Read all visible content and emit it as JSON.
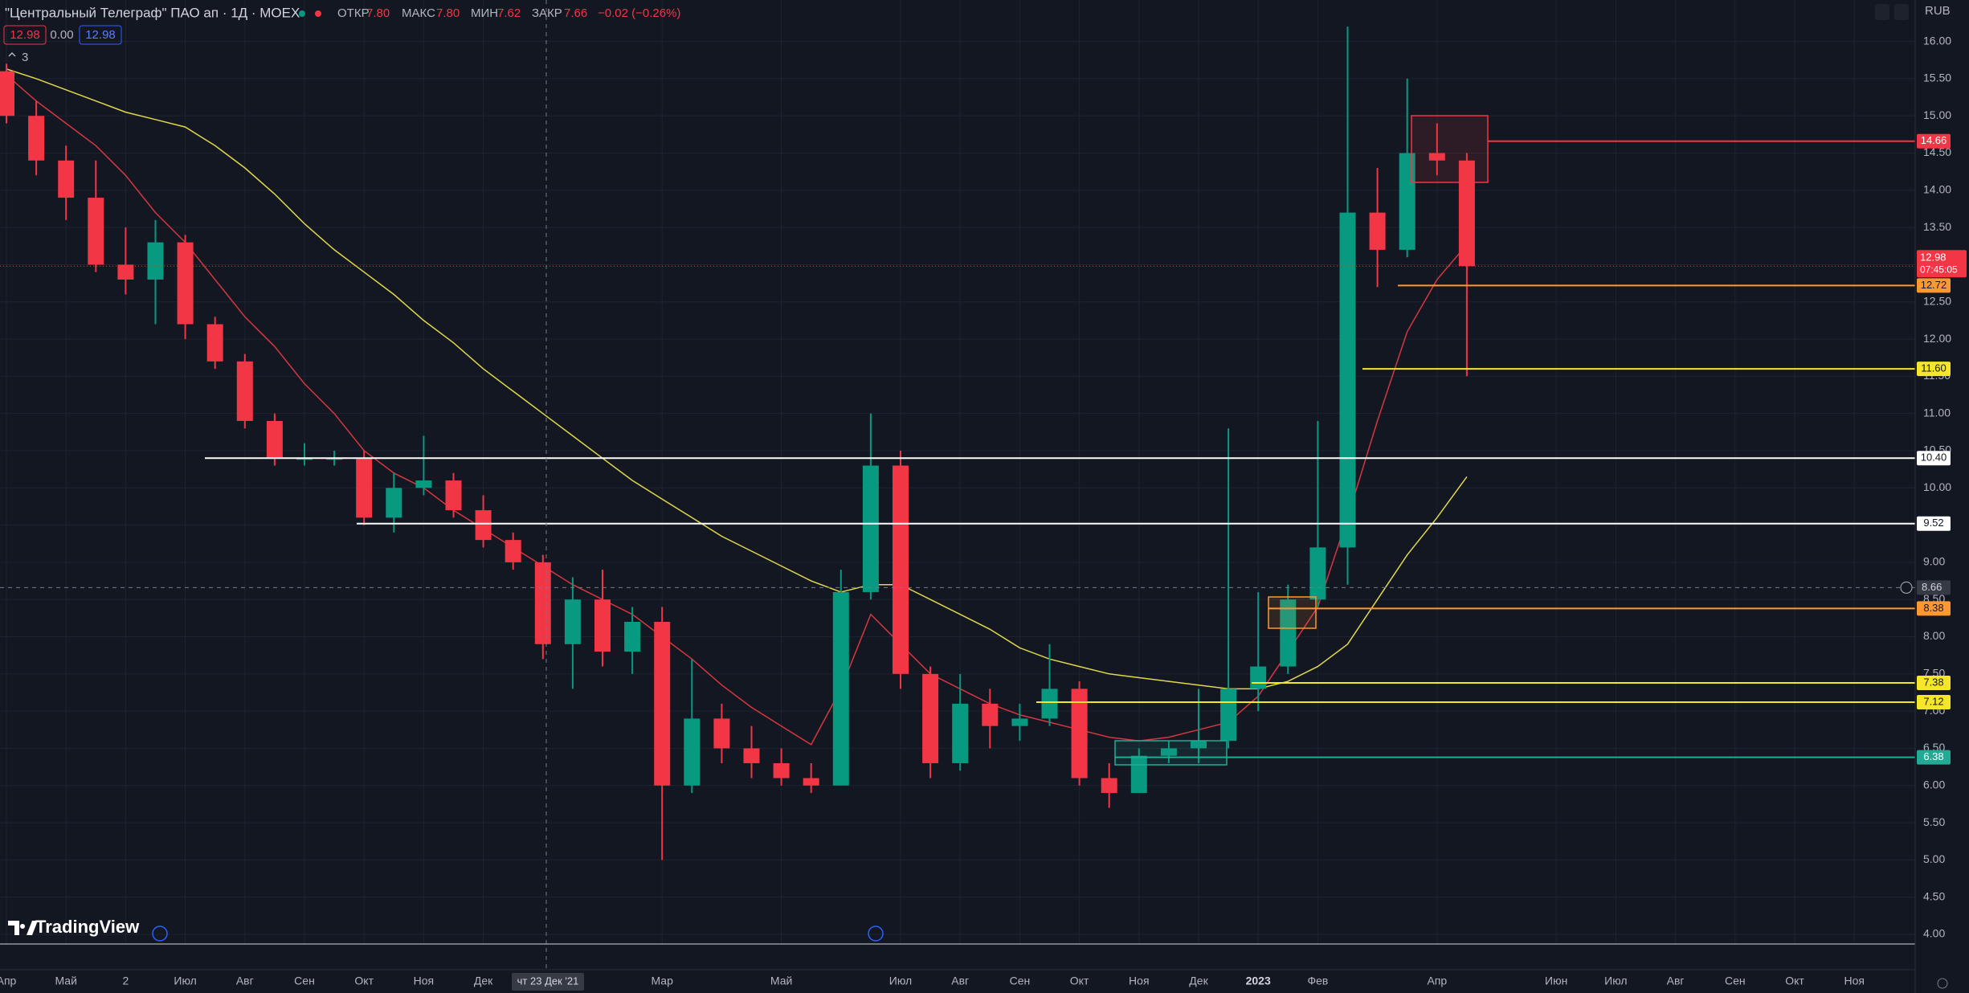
{
  "header": {
    "symbol": "\"Центральный Телеграф\" ПАО ап · 1Д · MOEX",
    "open_label": "ОТКР",
    "open": "7.80",
    "high_label": "МАКС",
    "high": "7.80",
    "low_label": "МИН",
    "low": "7.62",
    "close_label": "ЗАКР",
    "close": "7.66",
    "change": "−0.02 (−0.26%)",
    "sell": "12.98",
    "spread": "0.00",
    "buy": "12.98",
    "indicators": "3",
    "currency": "RUB",
    "brand": "TradingView"
  },
  "chart_data": {
    "type": "candlestick",
    "categories": [
      "Апр",
      null,
      "Май",
      null,
      "2",
      null,
      "Июл",
      null,
      "Авг",
      null,
      "Сен",
      null,
      "Окт",
      null,
      "Ноя",
      null,
      "Дек",
      null,
      null,
      null,
      null,
      null,
      "Мар",
      null,
      null,
      null,
      "Май",
      null,
      null,
      null,
      "Июл",
      null,
      "Авг",
      null,
      "Сен",
      null,
      "Окт",
      null,
      "Ноя",
      null,
      "Дек",
      null,
      "2023",
      null,
      "Фев",
      null,
      null,
      null,
      "Апр",
      null,
      null,
      null,
      "Июн",
      null,
      "Июл",
      null,
      "Авг",
      null,
      "Сен",
      null,
      "Окт",
      null,
      "Ноя",
      null
    ],
    "open": [
      15.6,
      15.0,
      14.4,
      13.9,
      13.0,
      12.8,
      13.3,
      12.2,
      11.7,
      10.9,
      10.4,
      10.4,
      10.4,
      9.6,
      10.0,
      10.1,
      9.7,
      9.3,
      9.0,
      7.9,
      8.5,
      7.8,
      8.2,
      6.0,
      6.9,
      6.5,
      6.3,
      6.1,
      6.0,
      8.6,
      10.3,
      7.5,
      6.3,
      7.1,
      6.8,
      6.9,
      7.3,
      6.1,
      5.9,
      6.4,
      6.5,
      6.6,
      7.3,
      7.6,
      8.5,
      9.2,
      13.7,
      13.2,
      14.5,
      14.4,
      null,
      null,
      null,
      null,
      null,
      null,
      null,
      null,
      null,
      null,
      null,
      null,
      null,
      null
    ],
    "high": [
      15.7,
      15.2,
      14.6,
      14.4,
      13.5,
      13.6,
      13.4,
      12.3,
      11.8,
      11.0,
      10.6,
      10.5,
      10.5,
      10.2,
      10.7,
      10.2,
      9.9,
      9.4,
      9.1,
      8.8,
      8.9,
      8.4,
      8.4,
      7.7,
      7.1,
      6.8,
      6.5,
      6.3,
      8.9,
      11.0,
      10.5,
      7.6,
      7.5,
      7.3,
      7.1,
      7.9,
      7.4,
      6.3,
      6.5,
      6.6,
      7.3,
      10.8,
      8.6,
      8.7,
      10.9,
      16.2,
      14.3,
      15.5,
      14.9,
      14.5,
      null,
      null,
      null,
      null,
      null,
      null,
      null,
      null,
      null,
      null,
      null,
      null,
      null,
      null
    ],
    "low": [
      14.9,
      14.2,
      13.6,
      12.9,
      12.6,
      12.2,
      12.0,
      11.6,
      10.8,
      10.3,
      10.3,
      10.3,
      9.5,
      9.4,
      9.9,
      9.6,
      9.2,
      8.9,
      7.7,
      7.3,
      7.6,
      7.5,
      5.0,
      5.9,
      6.3,
      6.1,
      6.0,
      5.9,
      6.0,
      8.5,
      7.3,
      6.1,
      6.2,
      6.5,
      6.6,
      6.8,
      6.0,
      5.7,
      5.9,
      6.3,
      6.3,
      6.5,
      7.0,
      7.5,
      8.4,
      8.7,
      12.7,
      13.1,
      14.2,
      11.5,
      null,
      null,
      null,
      null,
      null,
      null,
      null,
      null,
      null,
      null,
      null,
      null,
      null,
      null
    ],
    "close": [
      15.0,
      14.4,
      13.9,
      13.0,
      12.8,
      13.3,
      12.2,
      11.7,
      10.9,
      10.4,
      10.4,
      10.4,
      9.6,
      10.0,
      10.1,
      9.7,
      9.3,
      9.0,
      7.9,
      8.5,
      7.8,
      8.2,
      6.0,
      6.9,
      6.5,
      6.3,
      6.1,
      6.0,
      8.6,
      10.3,
      7.5,
      6.3,
      7.1,
      6.8,
      6.9,
      7.3,
      6.1,
      5.9,
      6.4,
      6.5,
      6.6,
      7.3,
      7.6,
      8.5,
      9.2,
      13.7,
      13.2,
      14.5,
      14.4,
      12.98,
      null,
      null,
      null,
      null,
      null,
      null,
      null,
      null,
      null,
      null,
      null,
      null,
      null,
      null
    ],
    "up_color": "#089981",
    "down_color": "#f23645",
    "overlays": [
      {
        "color": "#e0d84a",
        "values": [
          15.63,
          15.5,
          15.35,
          15.2,
          15.05,
          14.95,
          14.85,
          14.6,
          14.3,
          13.95,
          13.55,
          13.2,
          12.9,
          12.6,
          12.25,
          11.95,
          11.6,
          11.3,
          11.0,
          10.7,
          10.4,
          10.1,
          9.85,
          9.6,
          9.35,
          9.15,
          8.95,
          8.75,
          8.6,
          8.7,
          8.7,
          8.5,
          8.3,
          8.1,
          7.85,
          7.7,
          7.6,
          7.5,
          7.45,
          7.4,
          7.35,
          7.3,
          7.3,
          7.4,
          7.6,
          7.9,
          8.5,
          9.1,
          9.6,
          10.15,
          null,
          null,
          null,
          null,
          null,
          null,
          null,
          null,
          null,
          null,
          null,
          null,
          null,
          null
        ]
      },
      {
        "color": "#d6373f",
        "values": [
          15.55,
          15.2,
          14.9,
          14.6,
          14.2,
          13.7,
          13.3,
          12.8,
          12.3,
          11.9,
          11.4,
          11.0,
          10.5,
          10.2,
          10.0,
          9.7,
          9.45,
          9.2,
          8.95,
          8.7,
          8.5,
          8.3,
          8.0,
          7.7,
          7.35,
          7.05,
          6.8,
          6.55,
          7.3,
          8.3,
          7.9,
          7.5,
          7.3,
          7.1,
          6.95,
          6.85,
          6.75,
          6.65,
          6.6,
          6.65,
          6.75,
          6.85,
          7.2,
          7.8,
          8.4,
          9.6,
          10.9,
          12.1,
          12.8,
          13.27,
          null,
          null,
          null,
          null,
          null,
          null,
          null,
          null,
          null,
          null,
          null,
          null,
          null,
          null
        ]
      }
    ],
    "levels": [
      {
        "value": 14.66,
        "label": "14.66",
        "color": "#f23645"
      },
      {
        "value": 12.72,
        "label": "12.72",
        "color": "#ff9830"
      },
      {
        "value": 11.6,
        "label": "11.60",
        "color": "#f5e52b"
      },
      {
        "value": 10.4,
        "label": "10.40",
        "color": "#ffffff"
      },
      {
        "value": 9.52,
        "label": "9.52",
        "color": "#ffffff"
      },
      {
        "value": 8.38,
        "label": "8.38",
        "color": "#ff9830"
      },
      {
        "value": 7.38,
        "label": "7.38",
        "color": "#f5e52b"
      },
      {
        "value": 7.12,
        "label": "7.12",
        "color": "#f5e52b"
      },
      {
        "value": 6.38,
        "label": "6.38",
        "color": "#22ab94"
      }
    ],
    "last_price": {
      "value": 12.98,
      "label": "12.98",
      "countdown": "07:45:05"
    },
    "crosshair": {
      "value": 8.66,
      "label": "8.66",
      "date": "чт 23 Дек '21"
    },
    "ylim": [
      4,
      16
    ],
    "yticks": [
      {
        "value": 4,
        "label": "4.00"
      },
      {
        "value": 4.5,
        "label": "4.50"
      },
      {
        "value": 5,
        "label": "5.00"
      },
      {
        "value": 5.5,
        "label": "5.50"
      },
      {
        "value": 6,
        "label": "6.00"
      },
      {
        "value": 6.5,
        "label": "6.50"
      },
      {
        "value": 7,
        "label": "7.00"
      },
      {
        "value": 7.5,
        "label": "7.50"
      },
      {
        "value": 8,
        "label": "8.00"
      },
      {
        "value": 8.5,
        "label": "8.50"
      },
      {
        "value": 9,
        "label": "9.00"
      },
      {
        "value": 9.5,
        "label": "9.50"
      },
      {
        "value": 10,
        "label": "10.00"
      },
      {
        "value": 10.5,
        "label": "10.50"
      },
      {
        "value": 11,
        "label": "11.00"
      },
      {
        "value": 11.5,
        "label": "11.50"
      },
      {
        "value": 12,
        "label": "12.00"
      },
      {
        "value": 12.5,
        "label": "12.50"
      },
      {
        "value": 13,
        "label": "13.00"
      },
      {
        "value": 13.5,
        "label": "13.50"
      },
      {
        "value": 14,
        "label": "14.00"
      },
      {
        "value": 14.5,
        "label": "14.50"
      },
      {
        "value": 15,
        "label": "15.00"
      },
      {
        "value": 15.5,
        "label": "15.50"
      },
      {
        "value": 16,
        "label": "16.00"
      }
    ],
    "grid": true
  }
}
